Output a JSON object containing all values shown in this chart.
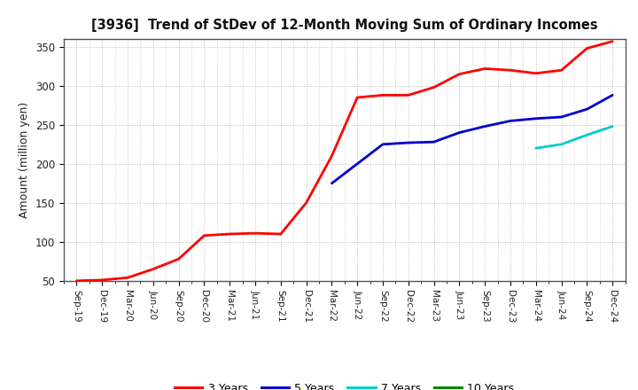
{
  "title": "[3936]  Trend of StDev of 12-Month Moving Sum of Ordinary Incomes",
  "ylabel": "Amount (million yen)",
  "background_color": "#ffffff",
  "grid_color": "#bbbbbb",
  "ylim": [
    50,
    360
  ],
  "yticks": [
    50,
    100,
    150,
    200,
    250,
    300,
    350
  ],
  "x_labels": [
    "Sep-19",
    "Dec-19",
    "Mar-20",
    "Jun-20",
    "Sep-20",
    "Dec-20",
    "Mar-21",
    "Jun-21",
    "Sep-21",
    "Dec-21",
    "Mar-22",
    "Jun-22",
    "Sep-22",
    "Dec-22",
    "Mar-23",
    "Jun-23",
    "Sep-23",
    "Dec-23",
    "Mar-24",
    "Jun-24",
    "Sep-24",
    "Dec-24"
  ],
  "series": {
    "3 Years": {
      "color": "#ff0000",
      "data_x": [
        0,
        1,
        2,
        3,
        4,
        5,
        6,
        7,
        8,
        9,
        10,
        11,
        12,
        13,
        14,
        15,
        16,
        17,
        18,
        19,
        20,
        21
      ],
      "data_y": [
        50,
        51,
        54,
        65,
        78,
        108,
        110,
        111,
        110,
        150,
        210,
        285,
        288,
        288,
        298,
        315,
        322,
        320,
        316,
        320,
        348,
        357
      ]
    },
    "5 Years": {
      "color": "#0000cc",
      "data_x": [
        10,
        11,
        12,
        13,
        14,
        15,
        16,
        17,
        18,
        19,
        20,
        21
      ],
      "data_y": [
        175,
        200,
        225,
        227,
        228,
        240,
        248,
        255,
        258,
        260,
        270,
        288
      ]
    },
    "7 Years": {
      "color": "#00cccc",
      "data_x": [
        18,
        19,
        20,
        21
      ],
      "data_y": [
        220,
        225,
        237,
        248
      ]
    },
    "10 Years": {
      "color": "#008800",
      "data_x": [],
      "data_y": []
    }
  },
  "legend_labels": [
    "3 Years",
    "5 Years",
    "7 Years",
    "10 Years"
  ],
  "legend_colors": [
    "#ff0000",
    "#0000cc",
    "#00cccc",
    "#008800"
  ]
}
